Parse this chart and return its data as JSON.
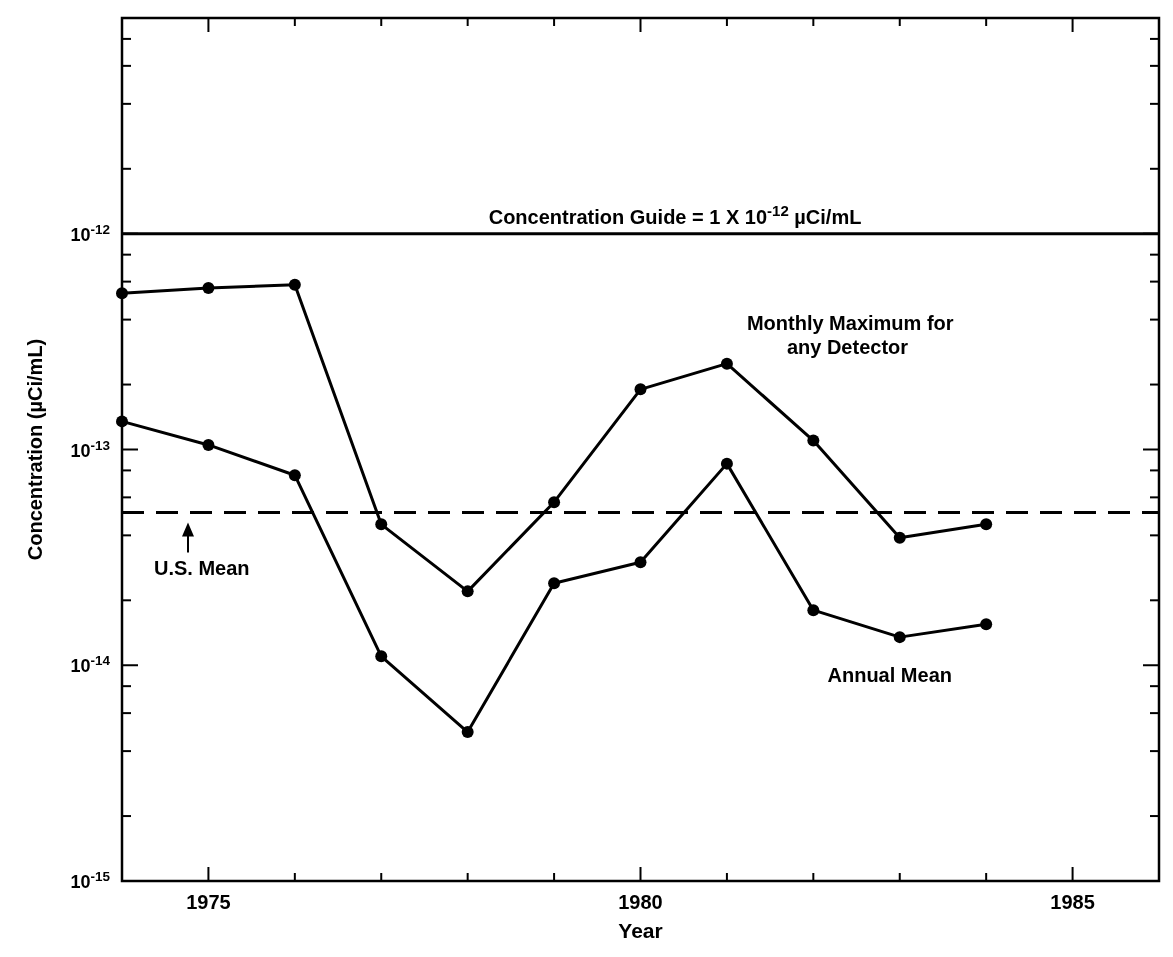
{
  "chart_data": {
    "type": "line",
    "xlabel": "Year",
    "ylabel": "Concentration (µCi/mL)",
    "x": [
      1974,
      1975,
      1976,
      1977,
      1978,
      1979,
      1980,
      1981,
      1982,
      1983,
      1984
    ],
    "series": [
      {
        "name": "Monthly Maximum for any Detector",
        "color": "#000000",
        "values": [
          5.3e-13,
          5.6e-13,
          5.8e-13,
          4.5e-14,
          2.2e-14,
          5.7e-14,
          1.9e-13,
          2.5e-13,
          1.1e-13,
          3.9e-14,
          4.5e-14
        ]
      },
      {
        "name": "Annual Mean",
        "color": "#000000",
        "values": [
          1.35e-13,
          1.05e-13,
          7.6e-14,
          1.1e-14,
          4.9e-15,
          2.4e-14,
          3e-14,
          8.6e-14,
          1.8e-14,
          1.35e-14,
          1.55e-14
        ]
      }
    ],
    "xlim": [
      1974,
      1986
    ],
    "xticks": [
      {
        "value": 1975,
        "label": "1975"
      },
      {
        "value": 1976,
        "label": null
      },
      {
        "value": 1977,
        "label": null
      },
      {
        "value": 1978,
        "label": null
      },
      {
        "value": 1979,
        "label": null
      },
      {
        "value": 1980,
        "label": "1980"
      },
      {
        "value": 1981,
        "label": null
      },
      {
        "value": 1982,
        "label": null
      },
      {
        "value": 1983,
        "label": null
      },
      {
        "value": 1984,
        "label": null
      },
      {
        "value": 1985,
        "label": "1985"
      }
    ],
    "ylim": [
      1e-15,
      1e-11
    ],
    "yticks": [
      {
        "value": 1e-15,
        "label": "10$^{-15}$"
      },
      {
        "value": 2e-15,
        "label": null
      },
      {
        "value": 4e-15,
        "label": null
      },
      {
        "value": 6e-15,
        "label": null
      },
      {
        "value": 8e-15,
        "label": null
      },
      {
        "value": 1e-14,
        "label": "10$^{-14}$"
      },
      {
        "value": 2e-14,
        "label": null
      },
      {
        "value": 4e-14,
        "label": null
      },
      {
        "value": 6e-14,
        "label": null
      },
      {
        "value": 8e-14,
        "label": null
      },
      {
        "value": 1e-13,
        "label": "10$^{-13}$"
      },
      {
        "value": 2e-13,
        "label": null
      },
      {
        "value": 4e-13,
        "label": null
      },
      {
        "value": 6e-13,
        "label": null
      },
      {
        "value": 8e-13,
        "label": null
      },
      {
        "value": 1e-12,
        "label": "10$^{-12}$"
      },
      {
        "value": 2e-12,
        "label": null
      },
      {
        "value": 4e-12,
        "label": null
      },
      {
        "value": 6e-12,
        "label": null
      },
      {
        "value": 8e-12,
        "label": null
      }
    ],
    "annotations": [
      "Concentration Guide = 1 X 10$^{-12}$ µCi/mL"
    ],
    "log": "y",
    "grid": false,
    "marker": "circle",
    "line_style": "solid",
    "ref_lines": [
      {
        "axis": "y",
        "value": 1e-12,
        "line_style": "solid"
      },
      {
        "axis": "y",
        "value": 5.1e-14,
        "label": "U.S. Mean",
        "line_style": "dashed"
      }
    ]
  }
}
